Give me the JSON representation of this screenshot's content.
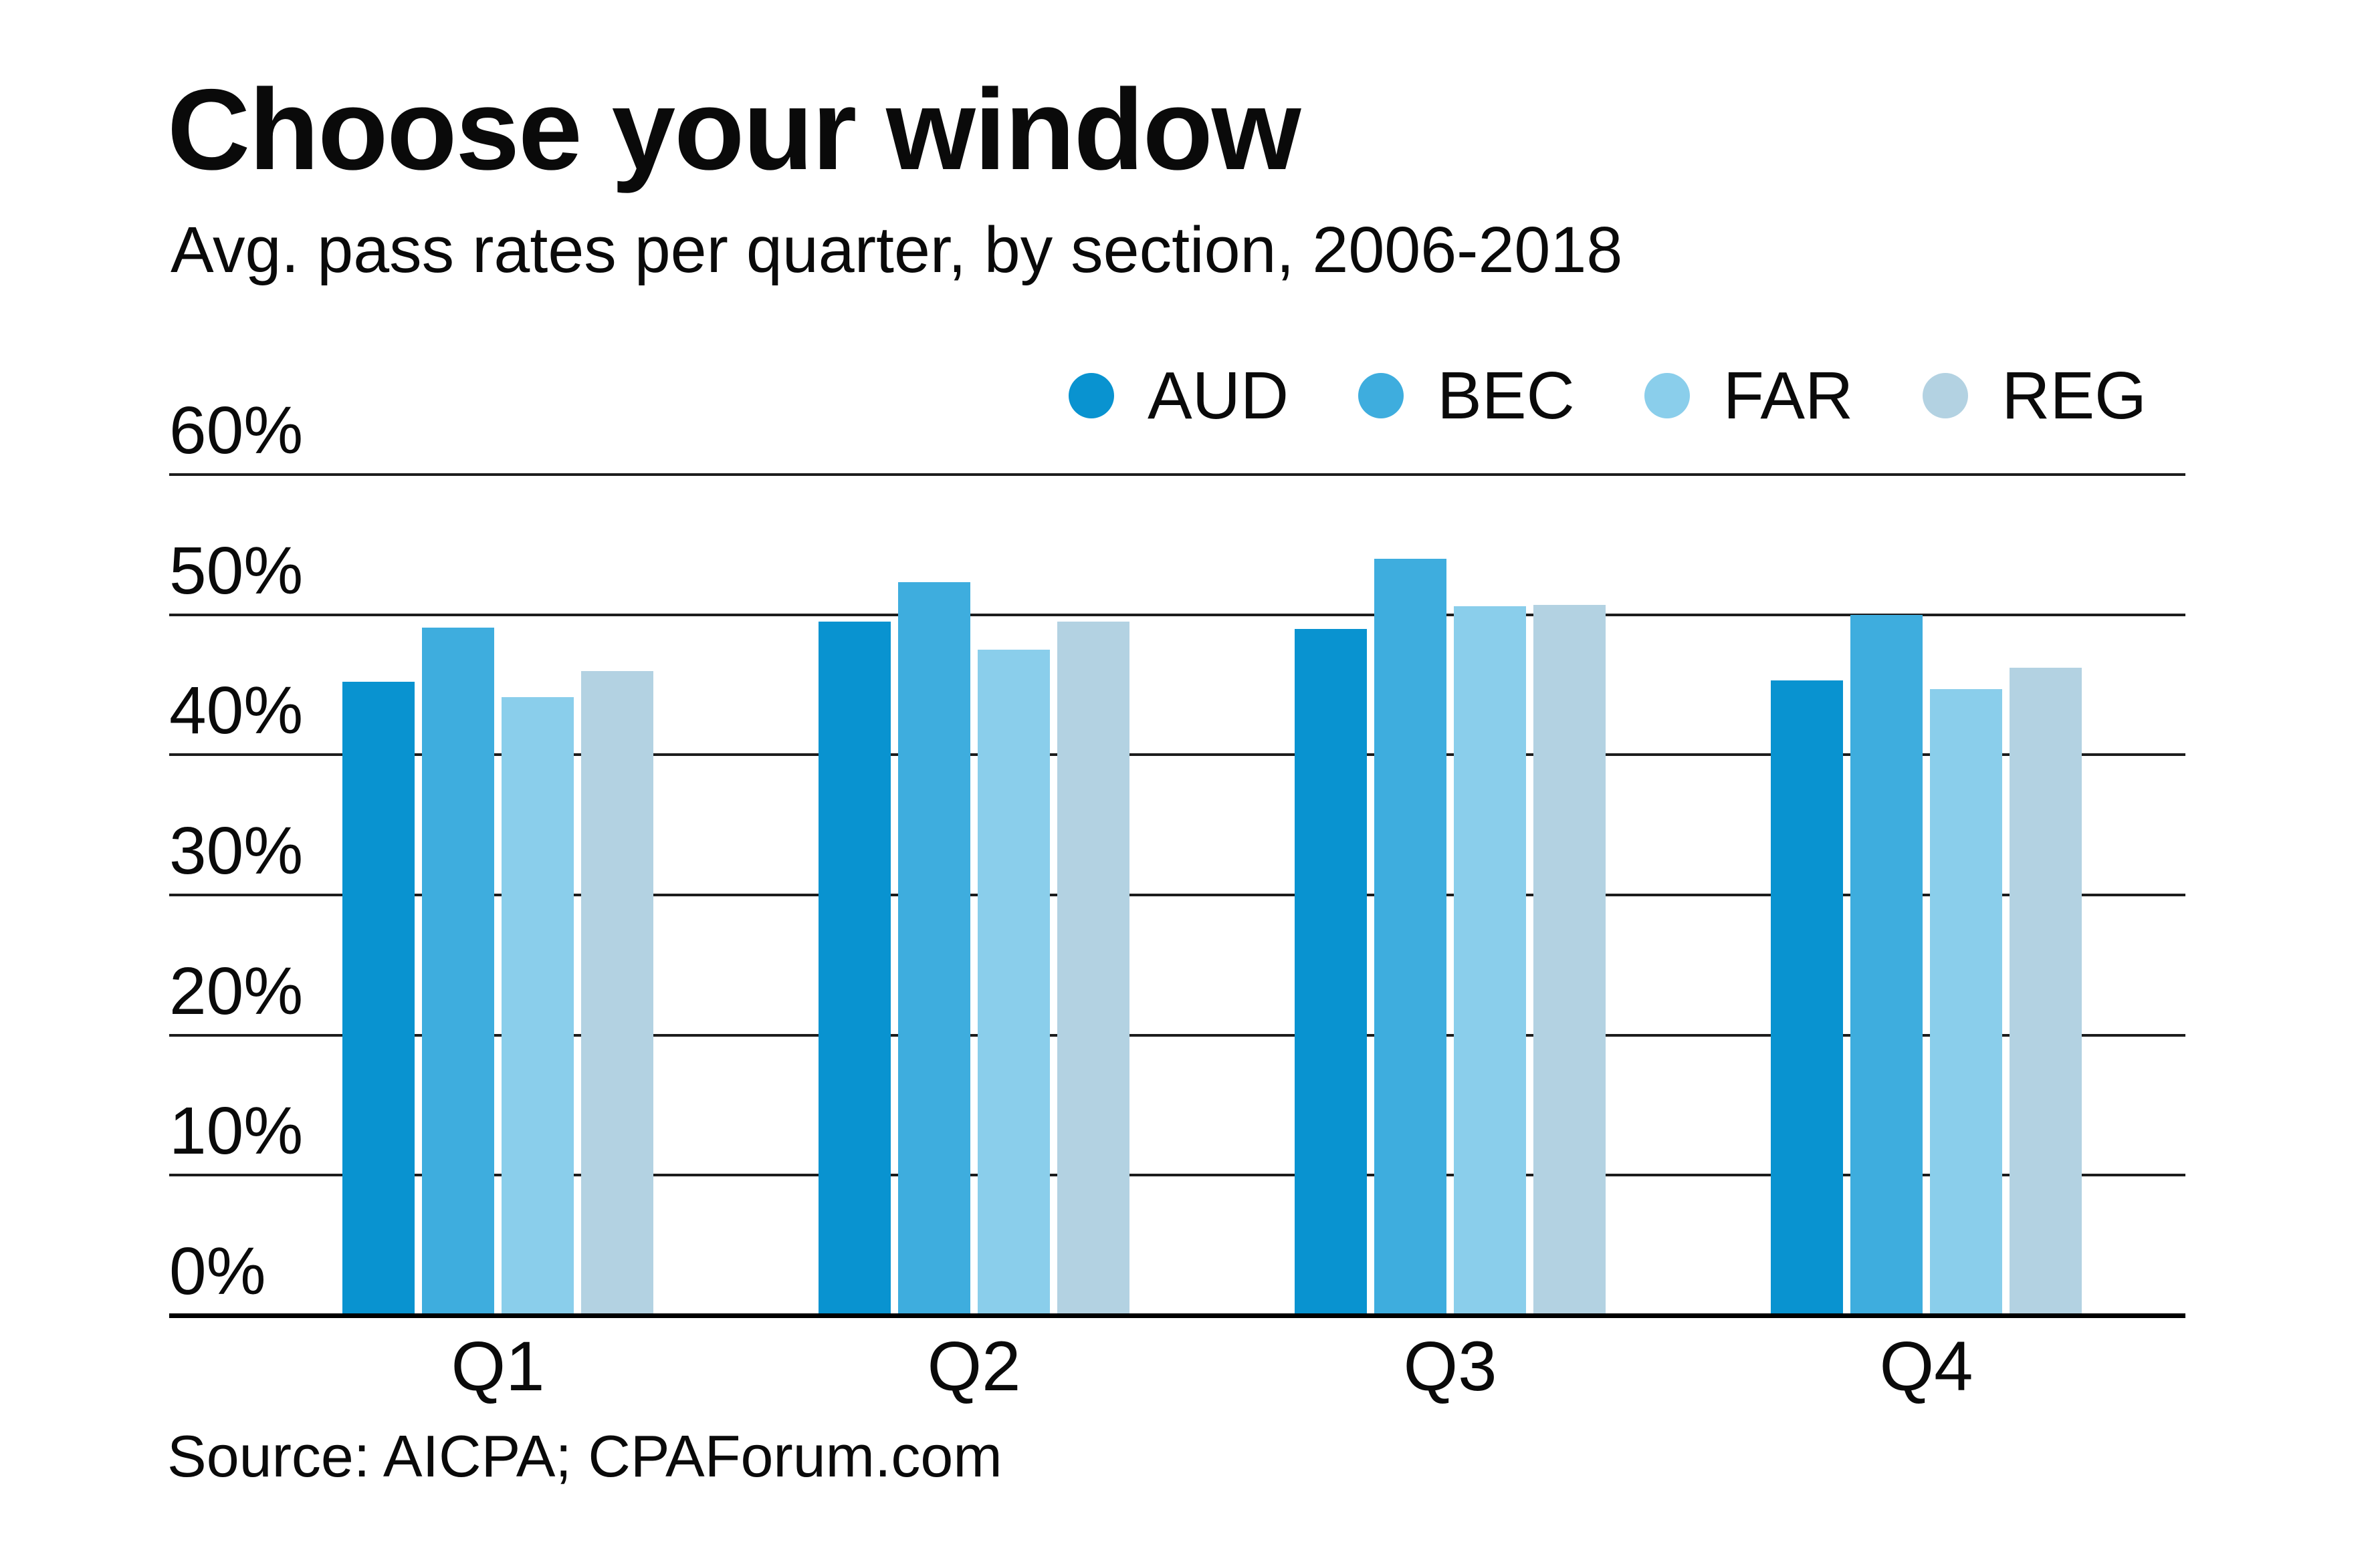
{
  "title": "Choose your window",
  "subtitle": "Avg. pass rates per quarter, by section, 2006-2018",
  "source": "Source: AICPA; CPAForum.com",
  "colors": {
    "aud": "#0993d0",
    "bec": "#3eadde",
    "far": "#8aceeb",
    "reg": "#b3d2e2",
    "gridline": "#1c1c1c",
    "baseline": "#000000",
    "text": "#0a0a0a"
  },
  "chart_data": {
    "type": "bar",
    "title": "Choose your window",
    "subtitle": "Avg. pass rates per quarter, by section, 2006-2018",
    "categories": [
      "Q1",
      "Q2",
      "Q3",
      "Q4"
    ],
    "series": [
      {
        "name": "AUD",
        "color": "#0993d0",
        "values": [
          45.2,
          49.5,
          49.0,
          45.3
        ]
      },
      {
        "name": "BEC",
        "color": "#3eadde",
        "values": [
          49.1,
          52.3,
          54.0,
          50.0
        ]
      },
      {
        "name": "FAR",
        "color": "#8aceeb",
        "values": [
          44.1,
          47.5,
          50.6,
          44.7
        ]
      },
      {
        "name": "REG",
        "color": "#b3d2e2",
        "values": [
          46.0,
          49.5,
          50.7,
          46.2
        ]
      }
    ],
    "ylim": [
      0,
      60
    ],
    "yticks": [
      {
        "label": "0%",
        "value": 0
      },
      {
        "label": "10%",
        "value": 10
      },
      {
        "label": "20%",
        "value": 20
      },
      {
        "label": "30%",
        "value": 30
      },
      {
        "label": "40%",
        "value": 40
      },
      {
        "label": "50%",
        "value": 50
      },
      {
        "label": "60%",
        "value": 60
      }
    ],
    "grid": true,
    "legend_position": "top-right",
    "unit": "%"
  }
}
